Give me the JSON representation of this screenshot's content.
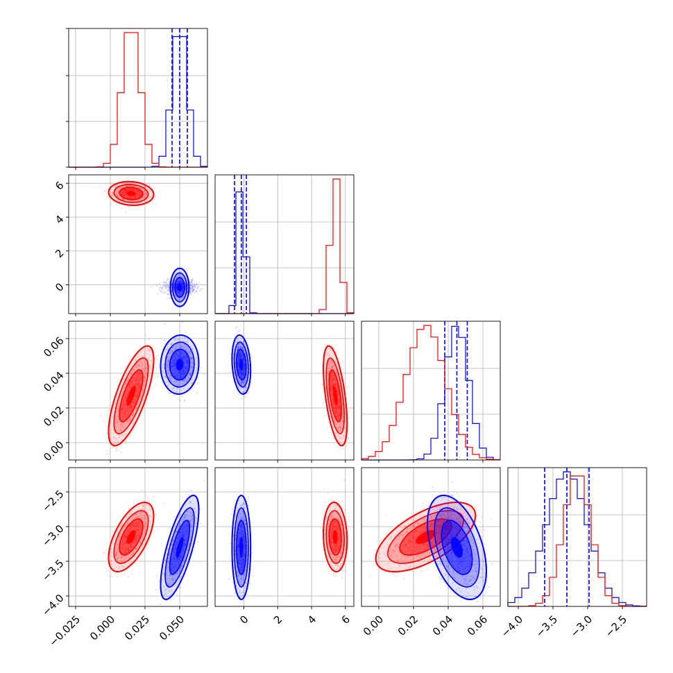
{
  "chart_data": {
    "type": "corner",
    "grid": true,
    "legend": "none",
    "colors": {
      "series_a": "#ff0000",
      "series_b": "#0000ff"
    },
    "params": [
      {
        "range": [
          -0.03,
          0.07
        ],
        "ticks": [
          -0.025,
          0.0,
          0.025,
          0.05
        ],
        "tick_labels": [
          "−0.025",
          "0.000",
          "0.025",
          "0.050"
        ]
      },
      {
        "range": [
          -1.7,
          6.5
        ],
        "ticks": [
          0,
          2,
          4,
          6
        ],
        "tick_labels": [
          "0",
          "2",
          "4",
          "6"
        ]
      },
      {
        "range": [
          -0.01,
          0.07
        ],
        "ticks": [
          0.0,
          0.02,
          0.04,
          0.06
        ],
        "tick_labels": [
          "0.00",
          "0.02",
          "0.04",
          "0.06"
        ]
      },
      {
        "range": [
          -4.15,
          -2.15
        ],
        "ticks": [
          -4.0,
          -3.5,
          -3.0,
          -2.5
        ],
        "tick_labels": [
          "−4.0",
          "−3.5",
          "−3.0",
          "−2.5"
        ]
      }
    ],
    "series": [
      {
        "color": "#ff0000",
        "mean": [
          0.015,
          5.4,
          0.027,
          -3.15
        ],
        "std": [
          0.0065,
          0.28,
          0.0115,
          0.2
        ],
        "corr": [
          [
            0,
            1,
            -0.1
          ],
          [
            0,
            2,
            0.72
          ],
          [
            0,
            3,
            0.6
          ],
          [
            1,
            2,
            -0.55
          ],
          [
            1,
            3,
            -0.1
          ],
          [
            2,
            3,
            0.62
          ]
        ],
        "quantiles_drawn": false
      },
      {
        "color": "#0000ff",
        "mean": [
          0.05,
          -0.15,
          0.045,
          -3.3
        ],
        "std": [
          0.0055,
          0.22,
          0.0068,
          0.3
        ],
        "corr": [
          [
            0,
            1,
            0.0
          ],
          [
            0,
            2,
            0.05
          ],
          [
            0,
            3,
            0.72
          ],
          [
            1,
            2,
            -0.2
          ],
          [
            1,
            3,
            0.0
          ],
          [
            2,
            3,
            -0.45
          ]
        ],
        "quantiles_drawn": true,
        "quantiles": [
          [
            0.0445,
            0.05,
            0.0555
          ],
          [
            -0.55,
            -0.15,
            0.15
          ],
          [
            0.038,
            0.045,
            0.051
          ],
          [
            -3.62,
            -3.3,
            -2.98
          ]
        ]
      }
    ]
  }
}
